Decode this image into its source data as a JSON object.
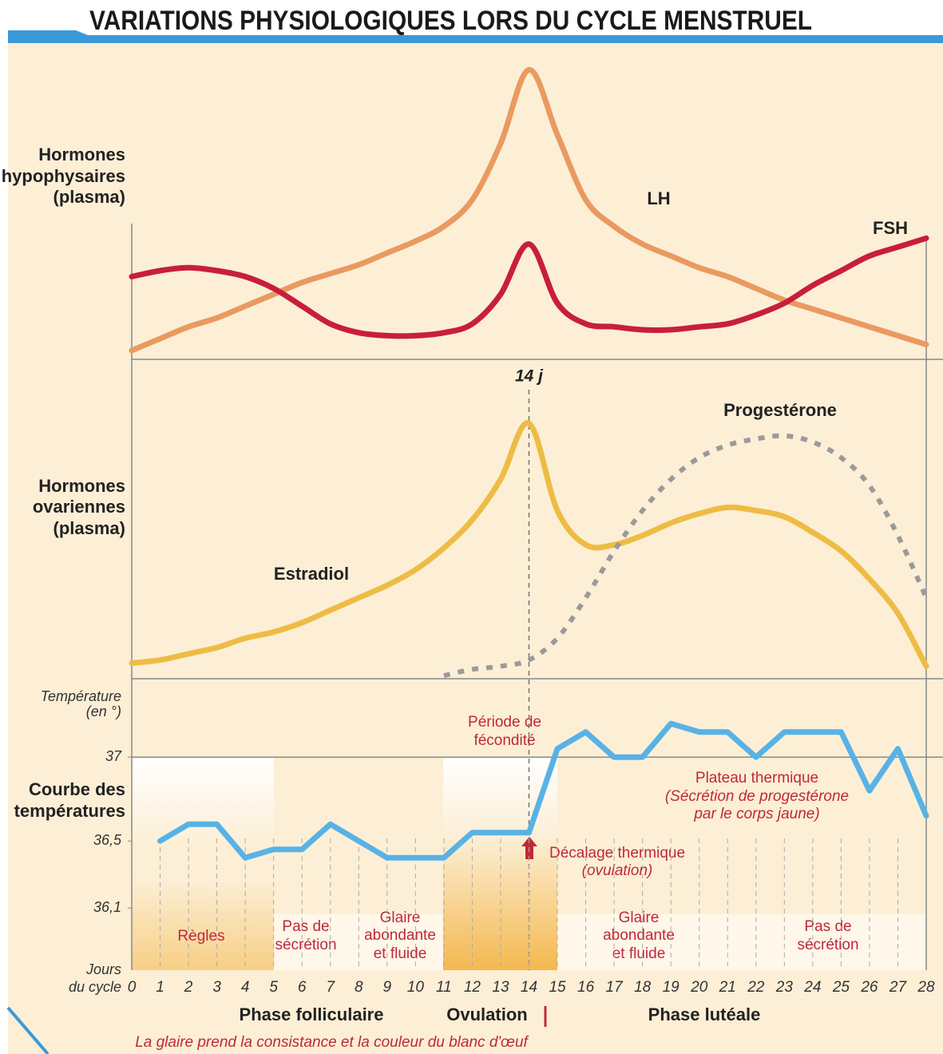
{
  "title": "VARIATIONS PHYSIOLOGIQUES LORS DU CYCLE MENSTRUEL",
  "chart_data": [
    {
      "type": "line",
      "ylabel": [
        "Hormones",
        "hypophysaires",
        "(plasma)"
      ],
      "x": [
        0,
        1,
        2,
        3,
        4,
        5,
        6,
        7,
        8,
        9,
        10,
        11,
        12,
        13,
        14,
        15,
        16,
        17,
        18,
        19,
        20,
        21,
        22,
        23,
        24,
        25,
        26,
        27,
        28
      ],
      "xlim": [
        0,
        28
      ],
      "ylim": [
        0,
        100
      ],
      "series": [
        {
          "name": "LH",
          "color": "#e99a60",
          "values": [
            3,
            7,
            11,
            14,
            18,
            22,
            26,
            29,
            32,
            36,
            40,
            45,
            54,
            73,
            98,
            76,
            54,
            45,
            39,
            35,
            31,
            28,
            24,
            20,
            17,
            14,
            11,
            8,
            5
          ]
        },
        {
          "name": "FSH",
          "color": "#c81e3c",
          "values": [
            28,
            30,
            31,
            30,
            28,
            24,
            18,
            12,
            9,
            8,
            8,
            9,
            12,
            22,
            39,
            19,
            12,
            11,
            10,
            10,
            11,
            12,
            15,
            19,
            25,
            30,
            35,
            38,
            41
          ]
        }
      ]
    },
    {
      "type": "line",
      "ylabel": [
        "Hormones",
        "ovariennes",
        "(plasma)"
      ],
      "marker_label": "14 j",
      "marker_x": 14,
      "x": [
        0,
        1,
        2,
        3,
        4,
        5,
        6,
        7,
        8,
        9,
        10,
        11,
        12,
        13,
        14,
        15,
        16,
        17,
        18,
        19,
        20,
        21,
        22,
        23,
        24,
        25,
        26,
        27,
        28
      ],
      "xlim": [
        0,
        28
      ],
      "ylim": [
        0,
        100
      ],
      "series": [
        {
          "name": "Estradiol",
          "color": "#eebc45",
          "values": [
            5,
            6,
            8,
            10,
            13,
            15,
            18,
            22,
            26,
            30,
            35,
            42,
            51,
            64,
            82,
            54,
            43,
            43,
            46,
            50,
            53,
            55,
            54,
            52,
            47,
            41,
            32,
            21,
            4
          ]
        },
        {
          "name": "Progestérone",
          "color": "#9a9a9a",
          "dashed": true,
          "values": [
            null,
            null,
            null,
            null,
            null,
            null,
            null,
            null,
            null,
            null,
            null,
            1,
            3,
            4,
            6,
            13,
            26,
            41,
            54,
            64,
            71,
            75,
            77,
            78,
            76,
            71,
            62,
            46,
            26
          ]
        }
      ]
    },
    {
      "type": "line",
      "ylabel": [
        "Courbe des",
        "températures"
      ],
      "yunit": [
        "Température",
        "(en °)"
      ],
      "xlabel": [
        "Jours",
        "du cycle"
      ],
      "x": [
        0,
        1,
        2,
        3,
        4,
        5,
        6,
        7,
        8,
        9,
        10,
        11,
        12,
        13,
        14,
        15,
        16,
        17,
        18,
        19,
        20,
        21,
        22,
        23,
        24,
        25,
        26,
        27,
        28
      ],
      "xticks": [
        0,
        1,
        2,
        3,
        4,
        5,
        6,
        7,
        8,
        9,
        10,
        11,
        12,
        13,
        14,
        15,
        16,
        17,
        18,
        19,
        20,
        21,
        22,
        23,
        24,
        25,
        26,
        27,
        28
      ],
      "xlim": [
        0,
        28
      ],
      "ylim": [
        35.73,
        37.42
      ],
      "yticks": [
        37,
        {
          "value": 36.5,
          "label": "36,5"
        },
        {
          "value": 36.1,
          "label": "36,1"
        }
      ],
      "reference_line": 37,
      "series": [
        {
          "color": "#58b2e6",
          "values": [
            null,
            36.5,
            36.6,
            36.6,
            36.4,
            36.45,
            36.45,
            36.6,
            36.5,
            36.4,
            36.4,
            36.4,
            36.55,
            36.55,
            36.55,
            37.05,
            37.15,
            37,
            37,
            37.2,
            37.15,
            37.15,
            37,
            37.15,
            37.15,
            37.15,
            36.8,
            37.05,
            36.65
          ]
        }
      ]
    }
  ],
  "annotations": {
    "fecondite": [
      "Période de",
      "fécondité"
    ],
    "plateau": [
      "Plateau thermique",
      "(Sécrétion de progestérone",
      "par le corps jaune)"
    ],
    "decalage": [
      "Décalage thermique",
      "(ovulation)"
    ],
    "regles": "Règles",
    "pas_secretion_1": [
      "Pas de",
      "sécrétion"
    ],
    "glaire_1": [
      "Glaire",
      "abondante",
      "et fluide"
    ],
    "glaire_2": [
      "Glaire",
      "abondante",
      "et fluide"
    ],
    "pas_secretion_2": [
      "Pas de",
      "sécrétion"
    ],
    "phases": [
      "Phase folliculaire",
      "Ovulation",
      "Phase lutéale"
    ],
    "footer": "La glaire prend la consistance et la couleur du blanc d'œuf"
  }
}
